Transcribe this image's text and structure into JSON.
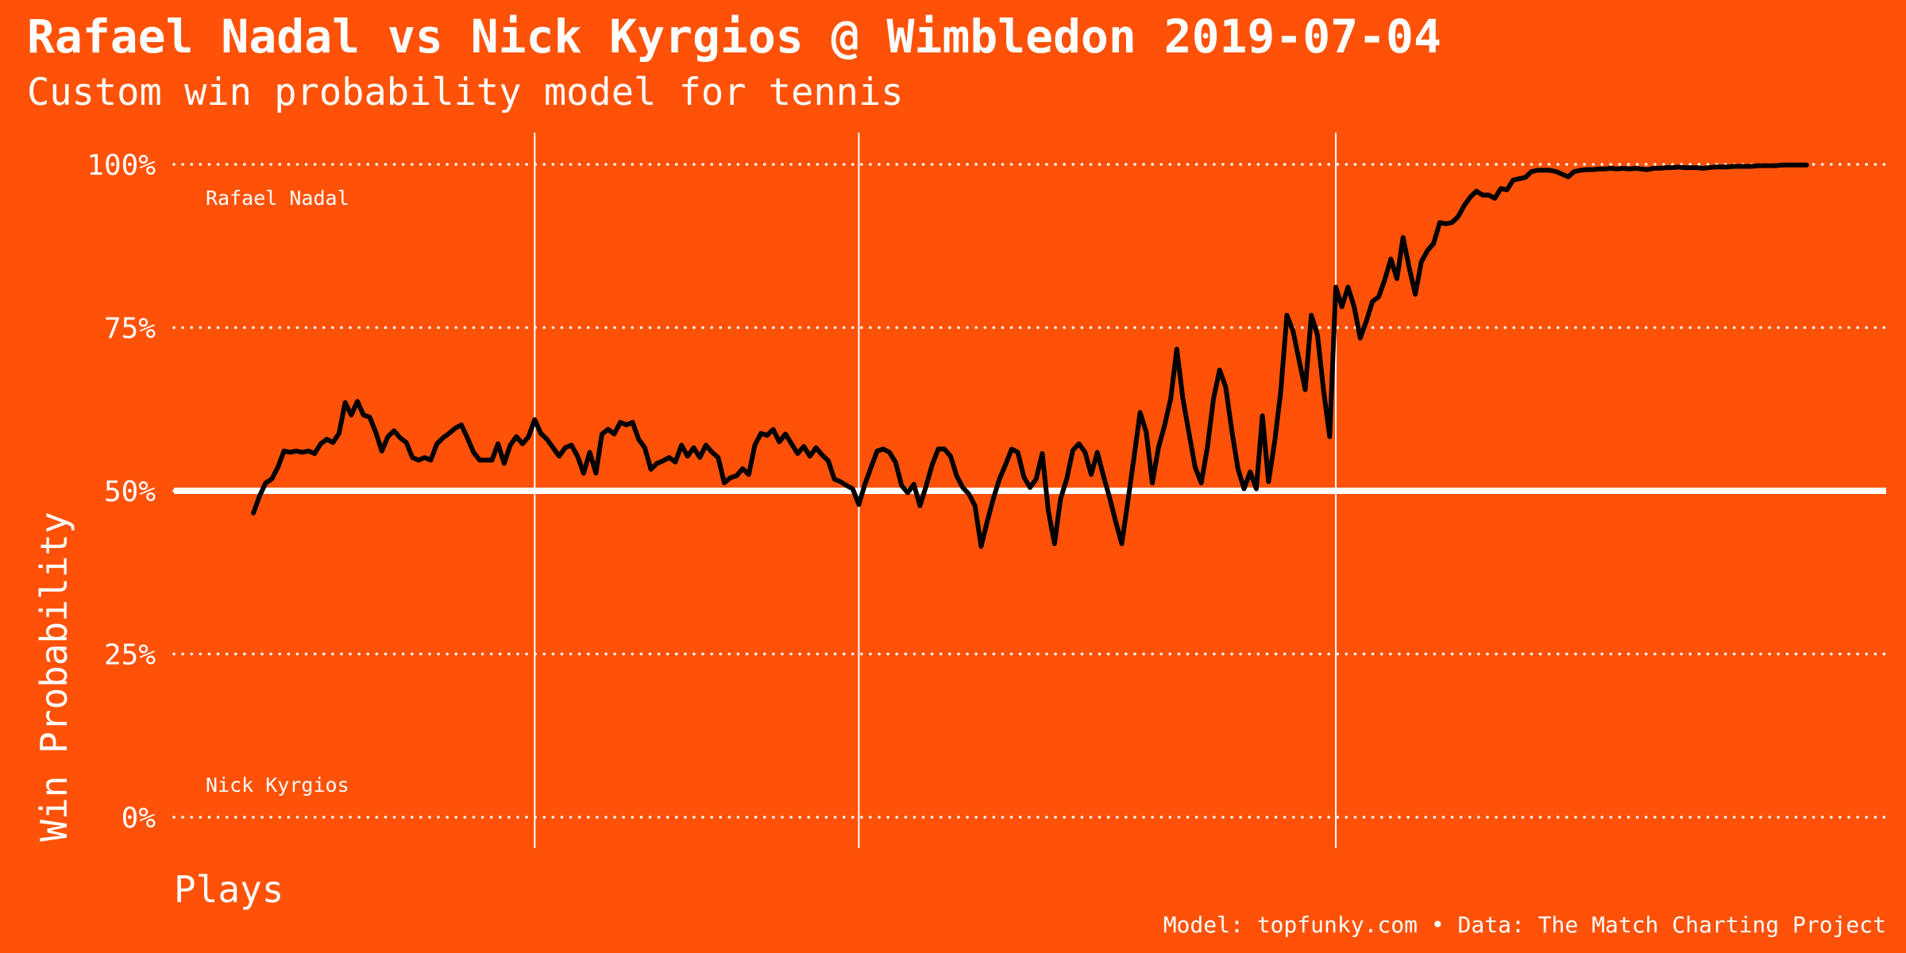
{
  "chart_data": {
    "type": "line",
    "title": "Rafael Nadal vs Nick Kyrgios @ Wimbledon 2019-07-04",
    "subtitle": "Custom win probability model for tennis",
    "x_label": "Plays",
    "y_label": "Win Probability",
    "caption": "Model: topfunky.com • Data: The Match Charting Project",
    "annotations": [
      "Rafael Nadal",
      "Nick Kyrgios"
    ],
    "color": "#000000",
    "background": "#ff5208",
    "grid": true,
    "reference_line": 50,
    "set_breaks": [
      47,
      100,
      178
    ],
    "xlim": [
      -12,
      268
    ],
    "ylim": [
      0,
      100
    ],
    "yticks": [
      {
        "value": 0,
        "label": "0%"
      },
      {
        "value": 25,
        "label": "25%"
      },
      {
        "value": 50,
        "label": "50%"
      },
      {
        "value": 75,
        "label": "75%"
      },
      {
        "value": 100,
        "label": "100%"
      }
    ],
    "x": [
      1,
      2,
      3,
      4,
      5,
      6,
      7,
      8,
      9,
      10,
      11,
      12,
      13,
      14,
      15,
      16,
      17,
      18,
      19,
      20,
      21,
      22,
      23,
      24,
      25,
      26,
      27,
      28,
      29,
      30,
      31,
      32,
      33,
      34,
      35,
      36,
      37,
      38,
      39,
      40,
      41,
      42,
      43,
      44,
      45,
      46,
      47,
      48,
      49,
      50,
      51,
      52,
      53,
      54,
      55,
      56,
      57,
      58,
      59,
      60,
      61,
      62,
      63,
      64,
      65,
      66,
      67,
      68,
      69,
      70,
      71,
      72,
      73,
      74,
      75,
      76,
      77,
      78,
      79,
      80,
      81,
      82,
      83,
      84,
      85,
      86,
      87,
      88,
      89,
      90,
      91,
      92,
      93,
      94,
      95,
      96,
      97,
      98,
      99,
      100,
      101,
      102,
      103,
      104,
      105,
      106,
      107,
      108,
      109,
      110,
      111,
      112,
      113,
      114,
      115,
      116,
      117,
      118,
      119,
      120,
      121,
      122,
      123,
      124,
      125,
      126,
      127,
      128,
      129,
      130,
      131,
      132,
      133,
      134,
      135,
      136,
      137,
      138,
      139,
      140,
      141,
      142,
      143,
      144,
      145,
      146,
      147,
      148,
      149,
      150,
      151,
      152,
      153,
      154,
      155,
      156,
      157,
      158,
      159,
      160,
      161,
      162,
      163,
      164,
      165,
      166,
      167,
      168,
      169,
      170,
      171,
      172,
      173,
      174,
      175,
      176,
      177,
      178,
      179,
      180,
      181,
      182,
      183,
      184,
      185,
      186,
      187,
      188,
      189,
      190,
      191,
      192,
      193,
      194,
      195,
      196,
      197,
      198,
      199,
      200,
      201,
      202,
      203,
      204,
      205,
      206,
      207,
      208,
      209,
      210,
      211,
      212,
      213,
      214,
      215,
      216,
      217,
      218,
      219,
      220,
      221,
      222,
      223,
      224,
      225,
      226,
      227,
      228,
      229,
      230,
      231,
      232,
      233,
      234,
      235,
      236,
      237,
      238,
      239,
      240,
      241,
      242,
      243,
      244,
      245,
      246,
      247,
      248,
      249,
      250,
      251,
      252,
      253,
      254,
      255
    ],
    "values": [
      46.6,
      49.2,
      51.2,
      51.8,
      53.6,
      56.1,
      55.9,
      56.1,
      55.9,
      56.1,
      55.7,
      57.2,
      57.9,
      57.4,
      58.8,
      63.5,
      61.6,
      63.7,
      61.6,
      61.3,
      59.0,
      56.1,
      58.3,
      59.2,
      58.1,
      57.4,
      55.1,
      54.7,
      55.1,
      54.7,
      57.2,
      58.1,
      58.8,
      59.6,
      60.1,
      58.1,
      55.9,
      54.7,
      54.7,
      54.7,
      57.2,
      54.2,
      57.0,
      58.3,
      57.2,
      58.3,
      60.9,
      58.8,
      57.9,
      56.6,
      55.3,
      56.6,
      57.0,
      55.3,
      52.7,
      55.9,
      52.7,
      58.7,
      59.4,
      58.7,
      60.5,
      60.1,
      60.5,
      57.9,
      56.6,
      53.3,
      54.2,
      54.6,
      55.1,
      54.4,
      57.0,
      55.3,
      56.6,
      55.1,
      57.0,
      55.9,
      55.1,
      51.2,
      52.0,
      52.3,
      53.4,
      52.5,
      57.0,
      58.8,
      58.5,
      59.4,
      57.5,
      58.7,
      57.2,
      55.7,
      56.8,
      55.3,
      56.6,
      55.5,
      54.6,
      51.8,
      51.4,
      50.8,
      50.3,
      47.9,
      51.0,
      53.6,
      56.1,
      56.4,
      55.9,
      54.4,
      50.8,
      49.7,
      51.0,
      47.7,
      50.7,
      54.0,
      56.4,
      56.4,
      55.3,
      52.3,
      50.5,
      49.5,
      47.7,
      41.5,
      45.3,
      48.8,
      51.8,
      54.0,
      56.4,
      55.9,
      52.1,
      50.5,
      51.8,
      55.7,
      46.9,
      41.9,
      48.8,
      51.8,
      56.2,
      57.2,
      55.9,
      52.5,
      55.9,
      52.3,
      49.0,
      45.3,
      41.9,
      48.4,
      55.1,
      62.0,
      59.0,
      51.2,
      56.6,
      60.0,
      64.1,
      71.7,
      64.1,
      58.8,
      53.6,
      51.2,
      56.6,
      64.1,
      68.5,
      65.9,
      59.2,
      53.4,
      50.3,
      52.9,
      50.3,
      61.5,
      51.4,
      57.5,
      65.2,
      76.9,
      74.5,
      70.0,
      65.5,
      76.9,
      73.9,
      65.4,
      58.3,
      81.2,
      78.2,
      81.2,
      78.2,
      73.4,
      76.0,
      79.0,
      79.7,
      82.3,
      85.5,
      82.5,
      88.8,
      84.2,
      80.1,
      85.1,
      86.8,
      87.9,
      91.1,
      90.9,
      91.1,
      92.0,
      93.7,
      95.0,
      95.9,
      95.3,
      95.3,
      94.8,
      96.3,
      96.1,
      97.6,
      97.8,
      98.0,
      98.9,
      99.1,
      99.1,
      99.1,
      98.9,
      98.5,
      98.1,
      98.9,
      99.1,
      99.2,
      99.2,
      99.3,
      99.3,
      99.4,
      99.3,
      99.4,
      99.3,
      99.4,
      99.3,
      99.2,
      99.4,
      99.4,
      99.5,
      99.5,
      99.6,
      99.5,
      99.5,
      99.5,
      99.4,
      99.5,
      99.6,
      99.6,
      99.6,
      99.7,
      99.7,
      99.7,
      99.7,
      99.8,
      99.8,
      99.8,
      99.8,
      99.9,
      99.9,
      99.9,
      99.9,
      99.9
    ]
  }
}
